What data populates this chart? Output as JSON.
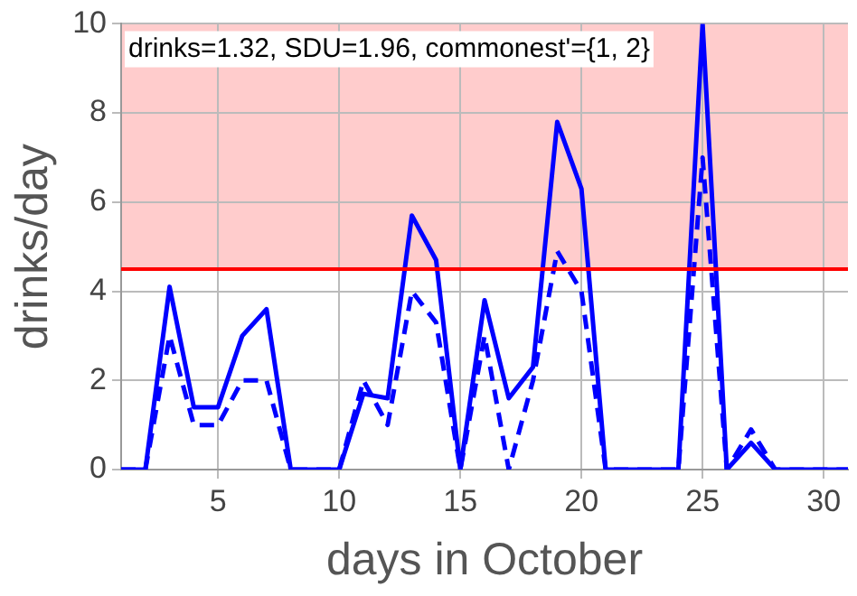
{
  "chart_data": {
    "type": "line",
    "xlabel": "days in October",
    "ylabel": "drinks/day",
    "x": [
      1,
      2,
      3,
      4,
      5,
      6,
      7,
      8,
      9,
      10,
      11,
      12,
      13,
      14,
      15,
      16,
      17,
      18,
      19,
      20,
      21,
      22,
      23,
      24,
      25,
      26,
      27,
      28,
      29,
      30,
      31
    ],
    "series": [
      {
        "color": "#0000ff",
        "line_style": "solid",
        "values": [
          0,
          0,
          4.1,
          1.4,
          1.4,
          3.0,
          3.6,
          0,
          0,
          0,
          1.7,
          1.6,
          5.7,
          4.7,
          0,
          3.8,
          1.6,
          2.3,
          7.8,
          6.3,
          0,
          0,
          0,
          0,
          10,
          0,
          0.6,
          0,
          0,
          0,
          0
        ]
      },
      {
        "color": "#0000ff",
        "line_style": "dashed",
        "values": [
          0,
          0,
          3.0,
          1.0,
          1.0,
          2.0,
          2.0,
          0,
          0,
          0,
          2.0,
          1.0,
          4.0,
          3.3,
          0,
          3.0,
          0,
          2.0,
          4.9,
          4.0,
          0,
          0,
          0,
          0,
          7.0,
          0,
          0.9,
          0,
          0,
          0,
          0
        ]
      }
    ],
    "xlim": [
      1,
      31
    ],
    "xticks": [
      5,
      10,
      15,
      20,
      25,
      30
    ],
    "ylim": [
      0,
      10
    ],
    "yticks": [
      0,
      2,
      4,
      6,
      8,
      10
    ],
    "grid": true,
    "marker": "none",
    "legend": false,
    "bands": [
      {
        "axis": "y",
        "from": 4.5,
        "to": 10,
        "color": "#ffcccc"
      }
    ],
    "ref_lines": [
      {
        "axis": "y",
        "value": 4.5,
        "color": "#ff0000"
      }
    ],
    "annotations": [
      "drinks=1.32, SDU=1.96, commonest'={1, 2}"
    ]
  }
}
